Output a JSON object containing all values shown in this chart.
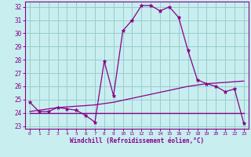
{
  "xlabel": "Windchill (Refroidissement éolien,°C)",
  "xlim": [
    -0.5,
    23.5
  ],
  "ylim": [
    22.8,
    32.4
  ],
  "yticks": [
    23,
    24,
    25,
    26,
    27,
    28,
    29,
    30,
    31,
    32
  ],
  "xticks": [
    0,
    1,
    2,
    3,
    4,
    5,
    6,
    7,
    8,
    9,
    10,
    11,
    12,
    13,
    14,
    15,
    16,
    17,
    18,
    19,
    20,
    21,
    22,
    23
  ],
  "bg_color": "#c8eef0",
  "line_color": "#880088",
  "grid_color": "#99cccc",
  "hours": [
    0,
    1,
    2,
    3,
    4,
    5,
    6,
    7,
    8,
    9,
    10,
    11,
    12,
    13,
    14,
    15,
    16,
    17,
    18,
    19,
    20,
    21,
    22,
    23
  ],
  "temperature": [
    24.8,
    24.1,
    24.1,
    24.4,
    24.3,
    24.2,
    23.8,
    23.3,
    27.9,
    25.3,
    30.2,
    31.0,
    32.1,
    32.1,
    31.7,
    32.0,
    31.2,
    28.7,
    26.5,
    26.2,
    26.0,
    25.6,
    25.8,
    23.2
  ],
  "flat_line": [
    24.0,
    24.0,
    24.0,
    24.0,
    24.0,
    24.0,
    24.0,
    24.0,
    24.0,
    24.0,
    24.0,
    24.0,
    24.0,
    24.0,
    24.0,
    24.0,
    24.0,
    24.0,
    24.0,
    24.0,
    24.0,
    24.0,
    24.0,
    24.0
  ],
  "trend_line": [
    24.1,
    24.2,
    24.3,
    24.4,
    24.45,
    24.5,
    24.55,
    24.6,
    24.7,
    24.8,
    24.95,
    25.1,
    25.25,
    25.4,
    25.55,
    25.7,
    25.85,
    26.0,
    26.1,
    26.2,
    26.25,
    26.3,
    26.35,
    26.4
  ]
}
